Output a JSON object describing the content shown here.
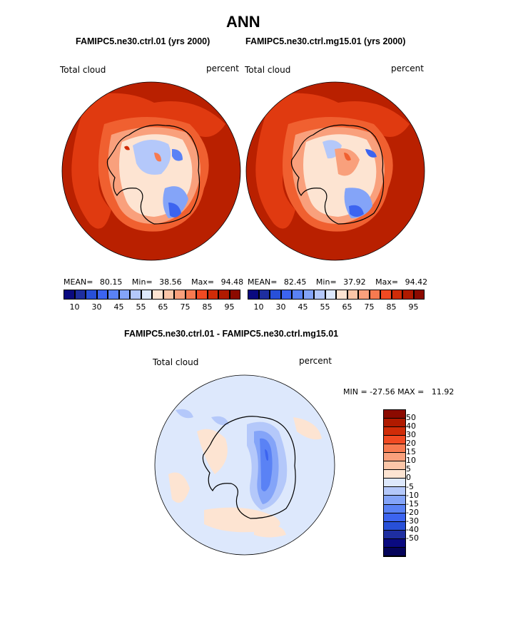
{
  "title": "ANN",
  "colors": {
    "dark_red": "#b92000",
    "land_outline": "#000000"
  },
  "top_left": {
    "subtitle": "FAMIPC5.ne30.ctrl.01 (yrs 2000)",
    "var_label": "Total cloud",
    "unit_label": "percent",
    "stats": {
      "mean_label": "MEAN=",
      "mean": "80.15",
      "min_label": "Min=",
      "min": "38.56",
      "max_label": "Max=",
      "max": "94.48"
    }
  },
  "top_right": {
    "subtitle": "FAMIPC5.ne30.ctrl.mg15.01 (yrs 2000)",
    "var_label": "Total cloud",
    "unit_label": "percent",
    "stats": {
      "mean_label": "MEAN=",
      "mean": "82.45",
      "min_label": "Min=",
      "min": "37.92",
      "max_label": "Max=",
      "max": "94.42"
    }
  },
  "colorbar_top": {
    "colors": [
      "#0a0a80",
      "#1e2ea0",
      "#2850d8",
      "#3c64f0",
      "#5a82f5",
      "#84a4f8",
      "#b4c8fa",
      "#dde8fc",
      "#fde4d2",
      "#fbc6a8",
      "#f9a07c",
      "#f77a50",
      "#f14a22",
      "#d02c08",
      "#b01a00",
      "#8c0a00"
    ],
    "ticks": [
      "10",
      "30",
      "45",
      "55",
      "65",
      "75",
      "85",
      "95"
    ]
  },
  "diff": {
    "subtitle": "FAMIPC5.ne30.ctrl.01 - FAMIPC5.ne30.ctrl.mg15.01",
    "var_label": "Total cloud",
    "unit_label": "percent",
    "minmax": "MIN = -27.56 MAX =   11.92"
  },
  "colorbar_diff": {
    "colors": [
      "#8c0a00",
      "#b01a00",
      "#d02c08",
      "#f14a22",
      "#f77a50",
      "#f9a07c",
      "#fbc6a8",
      "#fde4d2",
      "#dde8fc",
      "#b4c8fa",
      "#84a4f8",
      "#5a82f5",
      "#3c64f0",
      "#2850d8",
      "#1e2ea0",
      "#0a0a80",
      "#05045a"
    ],
    "labels": [
      "50",
      "40",
      "30",
      "20",
      "15",
      "10",
      "5",
      "0",
      "-5",
      "-10",
      "-15",
      "-20",
      "-30",
      "-40",
      "-50"
    ]
  }
}
